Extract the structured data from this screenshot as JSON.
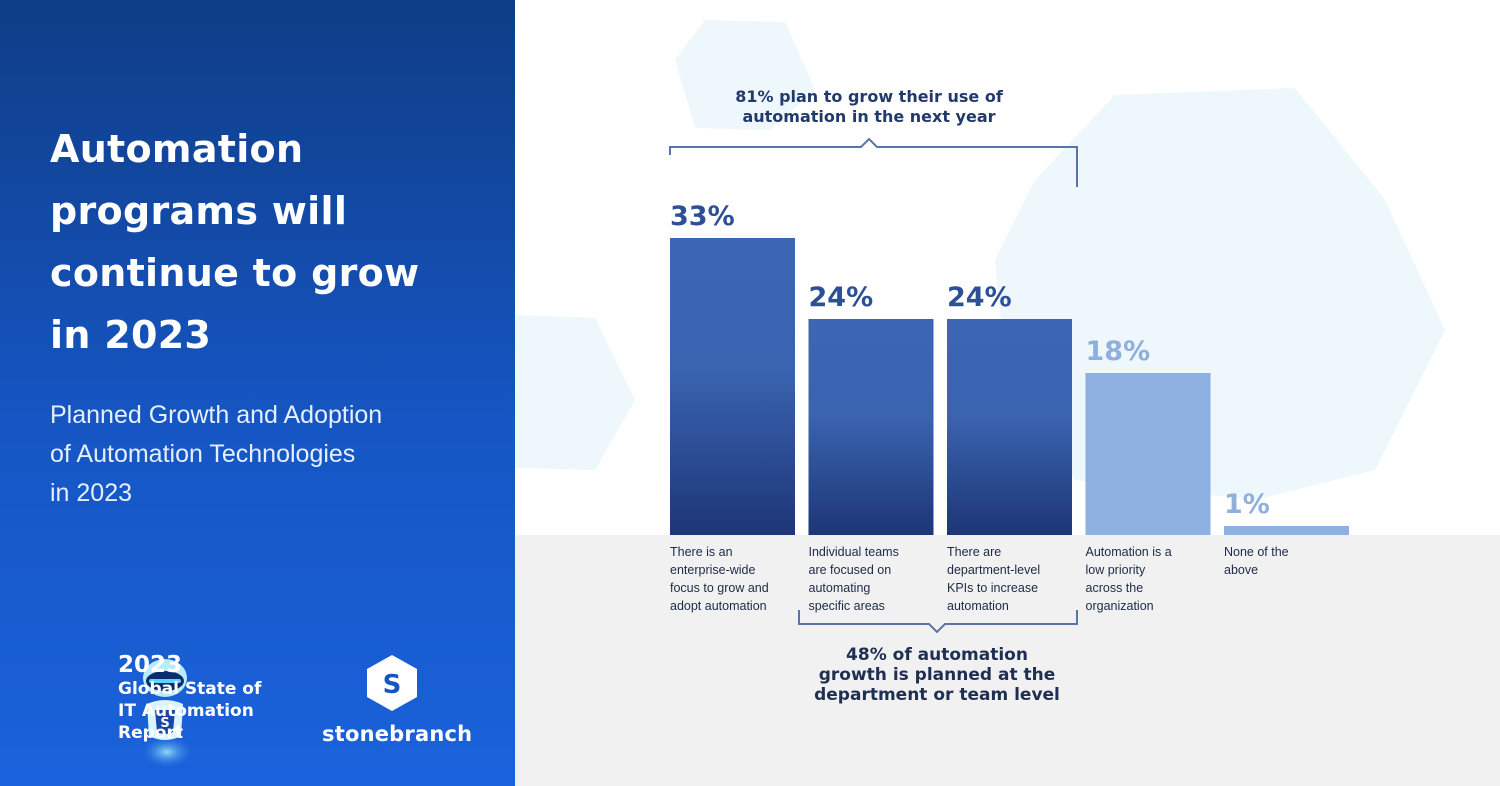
{
  "left": {
    "title_lines": [
      "Automation",
      "programs will",
      "continue to grow",
      "in 2023"
    ],
    "subtitle_lines": [
      "Planned Growth and Adoption",
      "of Automation Technologies",
      "in 2023"
    ],
    "report": {
      "year": "2023",
      "lines": [
        "Global State of",
        "IT Automation",
        "Report"
      ]
    },
    "brand": "stonebranch"
  },
  "chart_data": {
    "type": "bar",
    "categories": [
      "There is an enterprise-wide focus to grow and adopt automation",
      "Individual teams are focused on automating specific areas",
      "There are department-level KPIs to increase automation",
      "Automation is a low priority across the organization",
      "None of the above"
    ],
    "category_lines": [
      [
        "There is an",
        "enterprise-wide",
        "focus to grow and",
        "adopt automation"
      ],
      [
        "Individual teams",
        "are focused on",
        "automating",
        "specific areas"
      ],
      [
        "There are",
        "department-level",
        "KPIs to increase",
        "automation"
      ],
      [
        "Automation is a",
        "low priority",
        "across the",
        "organization"
      ],
      [
        "None of the",
        "above"
      ]
    ],
    "values": [
      33,
      24,
      24,
      18,
      1
    ],
    "value_labels": [
      "33%",
      "24%",
      "24%",
      "18%",
      "1%"
    ],
    "ylim": [
      0,
      33
    ],
    "colors": {
      "primary": "#3c66b4",
      "gradient_bottom": "#1d3676",
      "light": "#8db0e0",
      "label_dark": "#2c4f96",
      "label_light": "#8fb0dd"
    },
    "annotations": {
      "top_bracket": {
        "lines": [
          "81% plan to grow their use of",
          "automation in the next year"
        ]
      },
      "bottom_bracket": {
        "lines": [
          "48% of automation",
          "growth is planned at the",
          "department or team level"
        ]
      }
    }
  }
}
